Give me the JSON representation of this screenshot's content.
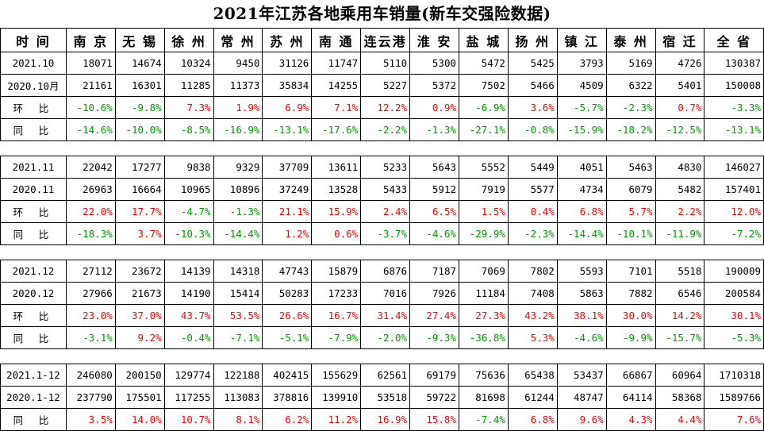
{
  "title": "2021年江苏各地乘用车销量(新车交强险数据)",
  "colors": {
    "positive": "#ff0000",
    "negative": "#009900",
    "text": "#000000",
    "border": "#000000"
  },
  "header": [
    "时 间",
    "南 京",
    "无 锡",
    "徐 州",
    "常 州",
    "苏 州",
    "南 通",
    "连云港",
    "淮 安",
    "盐 城",
    "扬 州",
    "镇 江",
    "泰 州",
    "宿 迁",
    "全 省"
  ],
  "groups": [
    [
      {
        "label": "2021.10",
        "kind": "value",
        "cells": [
          "18071",
          "14674",
          "10324",
          "9450",
          "31126",
          "11747",
          "5110",
          "5300",
          "5472",
          "5425",
          "3793",
          "5169",
          "4726",
          "130387"
        ]
      },
      {
        "label": "2020.10月",
        "kind": "value",
        "cells": [
          "21161",
          "16301",
          "11285",
          "11373",
          "35834",
          "14255",
          "5227",
          "5372",
          "7502",
          "5466",
          "4509",
          "6322",
          "5401",
          "150008"
        ]
      },
      {
        "label": "环 比",
        "kind": "pct",
        "cells": [
          "-10.6%",
          "-9.8%",
          "7.3%",
          "1.9%",
          "6.9%",
          "7.1%",
          "12.2%",
          "0.9%",
          "-6.9%",
          "3.6%",
          "-5.7%",
          "-2.3%",
          "0.7%",
          "-3.3%"
        ]
      },
      {
        "label": "同 比",
        "kind": "pct",
        "cells": [
          "-14.6%",
          "-10.0%",
          "-8.5%",
          "-16.9%",
          "-13.1%",
          "-17.6%",
          "-2.2%",
          "-1.3%",
          "-27.1%",
          "-0.8%",
          "-15.9%",
          "-18.2%",
          "-12.5%",
          "-13.1%"
        ]
      }
    ],
    [
      {
        "label": "2021.11",
        "kind": "value",
        "cells": [
          "22042",
          "17277",
          "9838",
          "9329",
          "37709",
          "13611",
          "5233",
          "5643",
          "5552",
          "5449",
          "4051",
          "5463",
          "4830",
          "146027"
        ]
      },
      {
        "label": "2020.11",
        "kind": "value",
        "cells": [
          "26963",
          "16664",
          "10965",
          "10896",
          "37249",
          "13528",
          "5433",
          "5912",
          "7919",
          "5577",
          "4734",
          "6079",
          "5482",
          "157401"
        ]
      },
      {
        "label": "环 比",
        "kind": "pct",
        "cells": [
          "22.0%",
          "17.7%",
          "-4.7%",
          "-1.3%",
          "21.1%",
          "15.9%",
          "2.4%",
          "6.5%",
          "1.5%",
          "0.4%",
          "6.8%",
          "5.7%",
          "2.2%",
          "12.0%"
        ]
      },
      {
        "label": "同 比",
        "kind": "pct",
        "cells": [
          "-18.3%",
          "3.7%",
          "-10.3%",
          "-14.4%",
          "1.2%",
          "0.6%",
          "-3.7%",
          "-4.6%",
          "-29.9%",
          "-2.3%",
          "-14.4%",
          "-10.1%",
          "-11.9%",
          "-7.2%"
        ]
      }
    ],
    [
      {
        "label": "2021.12",
        "kind": "value",
        "cells": [
          "27112",
          "23672",
          "14139",
          "14318",
          "47743",
          "15879",
          "6876",
          "7187",
          "7069",
          "7802",
          "5593",
          "7101",
          "5518",
          "190009"
        ]
      },
      {
        "label": "2020.12",
        "kind": "value",
        "cells": [
          "27966",
          "21673",
          "14190",
          "15414",
          "50283",
          "17233",
          "7016",
          "7926",
          "11184",
          "7408",
          "5863",
          "7882",
          "6546",
          "200584"
        ]
      },
      {
        "label": "环 比",
        "kind": "pct",
        "cells": [
          "23.0%",
          "37.0%",
          "43.7%",
          "53.5%",
          "26.6%",
          "16.7%",
          "31.4%",
          "27.4%",
          "27.3%",
          "43.2%",
          "38.1%",
          "30.0%",
          "14.2%",
          "30.1%"
        ]
      },
      {
        "label": "同 比",
        "kind": "pct",
        "cells": [
          "-3.1%",
          "9.2%",
          "-0.4%",
          "-7.1%",
          "-5.1%",
          "-7.9%",
          "-2.0%",
          "-9.3%",
          "-36.8%",
          "5.3%",
          "-4.6%",
          "-9.9%",
          "-15.7%",
          "-5.3%"
        ]
      }
    ],
    [
      {
        "label": "2021.1-12",
        "kind": "value",
        "cells": [
          "246080",
          "200150",
          "129774",
          "122188",
          "402415",
          "155629",
          "62561",
          "69179",
          "75636",
          "65438",
          "53437",
          "66867",
          "60964",
          "1710318"
        ]
      },
      {
        "label": "2020.1-12",
        "kind": "value",
        "cells": [
          "237790",
          "175501",
          "117255",
          "113083",
          "378816",
          "139910",
          "53518",
          "59722",
          "81698",
          "61244",
          "48747",
          "64114",
          "58368",
          "1589766"
        ]
      },
      {
        "label": "同 比",
        "kind": "pct",
        "cells": [
          "3.5%",
          "14.0%",
          "10.7%",
          "8.1%",
          "6.2%",
          "11.2%",
          "16.9%",
          "15.8%",
          "-7.4%",
          "6.8%",
          "9.6%",
          "4.3%",
          "4.4%",
          "7.6%"
        ]
      }
    ]
  ]
}
